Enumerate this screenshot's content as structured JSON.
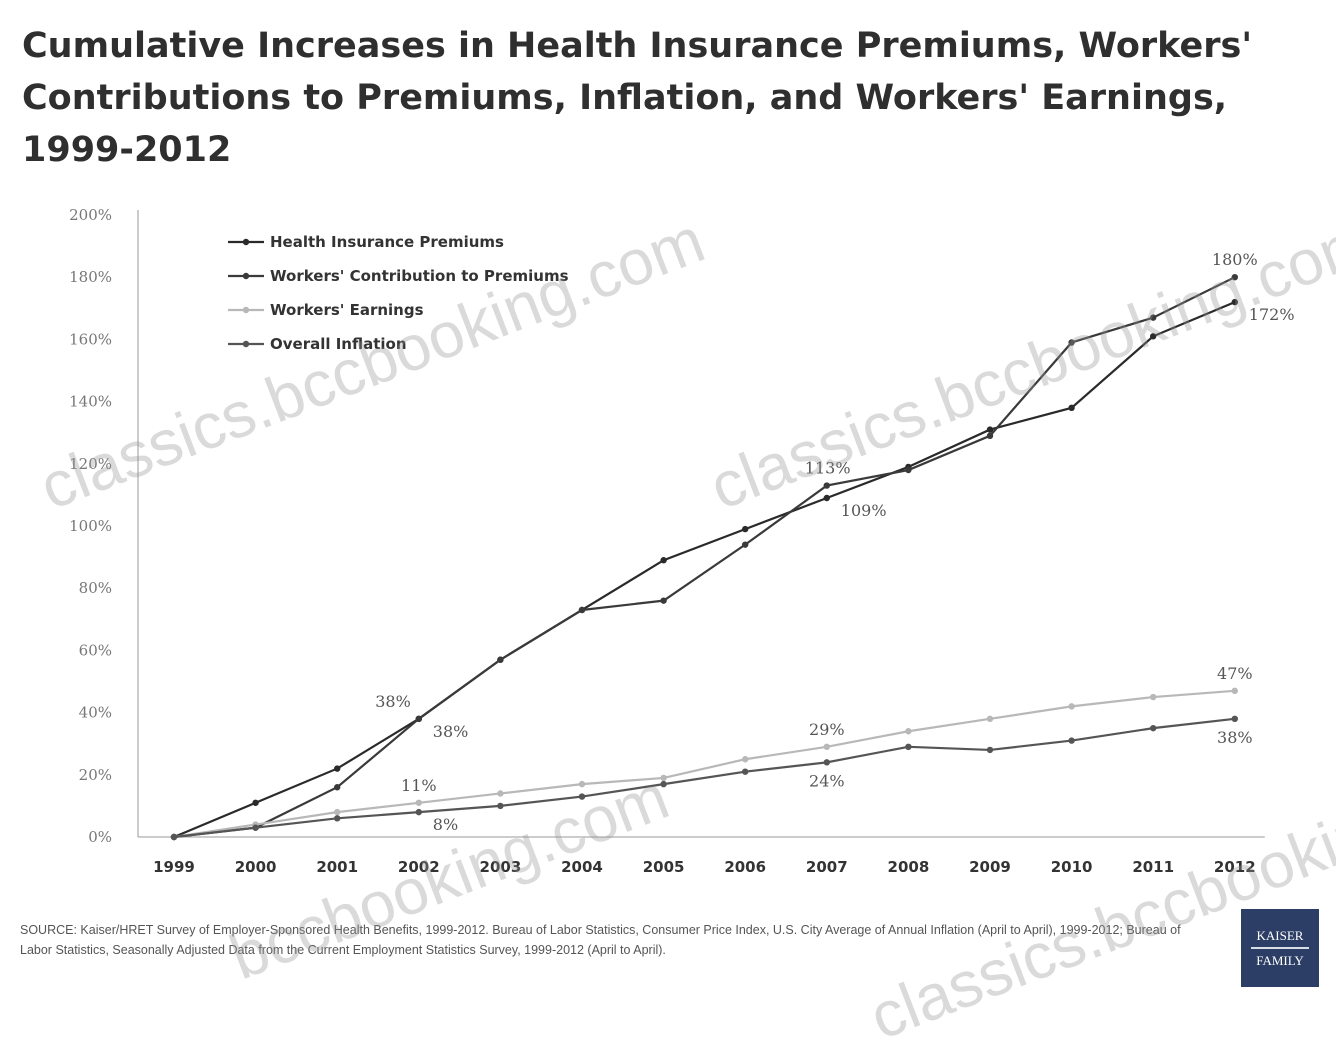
{
  "title": "Cumulative Increases in Health Insurance Premiums, Workers' Contributions to Premiums, Inflation, and Workers' Earnings, 1999-2012",
  "source": "SOURCE: Kaiser/HRET Survey of Employer-Sponsored Health Benefits, 1999-2012.  Bureau of Labor Statistics, Consumer Price Index, U.S. City Average of Annual Inflation (April to April), 1999-2012; Bureau of Labor Statistics, Seasonally Adjusted Data from the Current Employment Statistics Survey, 1999-2012 (April to April).",
  "logo": {
    "line1": "KAISER",
    "line2": "FAMILY"
  },
  "watermarks": [
    "classics.bccbooking.com",
    "classics.bccbooking.com",
    "bccbooking.com",
    "classics.bccbooking.com"
  ],
  "chart_data": {
    "type": "line",
    "title": "Cumulative Increases in Health Insurance Premiums, Workers' Contributions to Premiums, Inflation, and Workers' Earnings, 1999-2012",
    "xlabel": "",
    "ylabel": "",
    "ylim": [
      0,
      200
    ],
    "grid": false,
    "legend_position": "top-left",
    "categories": [
      "1999",
      "2000",
      "2001",
      "2002",
      "2003",
      "2004",
      "2005",
      "2006",
      "2007",
      "2008",
      "2009",
      "2010",
      "2011",
      "2012"
    ],
    "y_ticks": [
      "0%",
      "20%",
      "40%",
      "60%",
      "80%",
      "100%",
      "120%",
      "140%",
      "160%",
      "180%",
      "200%"
    ],
    "series": [
      {
        "name": "Health Insurance Premiums",
        "color": "#2a2a2a",
        "values": [
          0,
          11,
          22,
          38,
          57,
          73,
          89,
          99,
          109,
          119,
          131,
          138,
          161,
          172
        ]
      },
      {
        "name": "Workers' Contribution to Premiums",
        "color": "#3a3a3a",
        "values": [
          0,
          3,
          16,
          38,
          57,
          73,
          76,
          94,
          113,
          118,
          129,
          159,
          167,
          180
        ]
      },
      {
        "name": "Workers' Earnings",
        "color": "#b8b8b8",
        "values": [
          0,
          4,
          8,
          11,
          14,
          17,
          19,
          25,
          29,
          34,
          38,
          42,
          45,
          47
        ]
      },
      {
        "name": "Overall Inflation",
        "color": "#555555",
        "values": [
          0,
          3,
          6,
          8,
          10,
          13,
          17,
          21,
          24,
          29,
          28,
          31,
          35,
          38
        ]
      }
    ],
    "annotations": [
      {
        "text": "38%",
        "x": "2002",
        "y": 38,
        "placement": "above-left"
      },
      {
        "text": "38%",
        "x": "2002",
        "y": 38,
        "placement": "below-right"
      },
      {
        "text": "11%",
        "x": "2002",
        "y": 11,
        "placement": "above"
      },
      {
        "text": "8%",
        "x": "2002",
        "y": 8,
        "placement": "below-right"
      },
      {
        "text": "113%",
        "x": "2007",
        "y": 113,
        "placement": "above-right"
      },
      {
        "text": "109%",
        "x": "2007",
        "y": 109,
        "placement": "below-right"
      },
      {
        "text": "29%",
        "x": "2007",
        "y": 29,
        "placement": "above"
      },
      {
        "text": "24%",
        "x": "2007",
        "y": 24,
        "placement": "below"
      },
      {
        "text": "180%",
        "x": "2012",
        "y": 180,
        "placement": "above"
      },
      {
        "text": "172%",
        "x": "2012",
        "y": 172,
        "placement": "below-right"
      },
      {
        "text": "47%",
        "x": "2012",
        "y": 47,
        "placement": "above"
      },
      {
        "text": "38%",
        "x": "2012",
        "y": 38,
        "placement": "below"
      }
    ]
  }
}
